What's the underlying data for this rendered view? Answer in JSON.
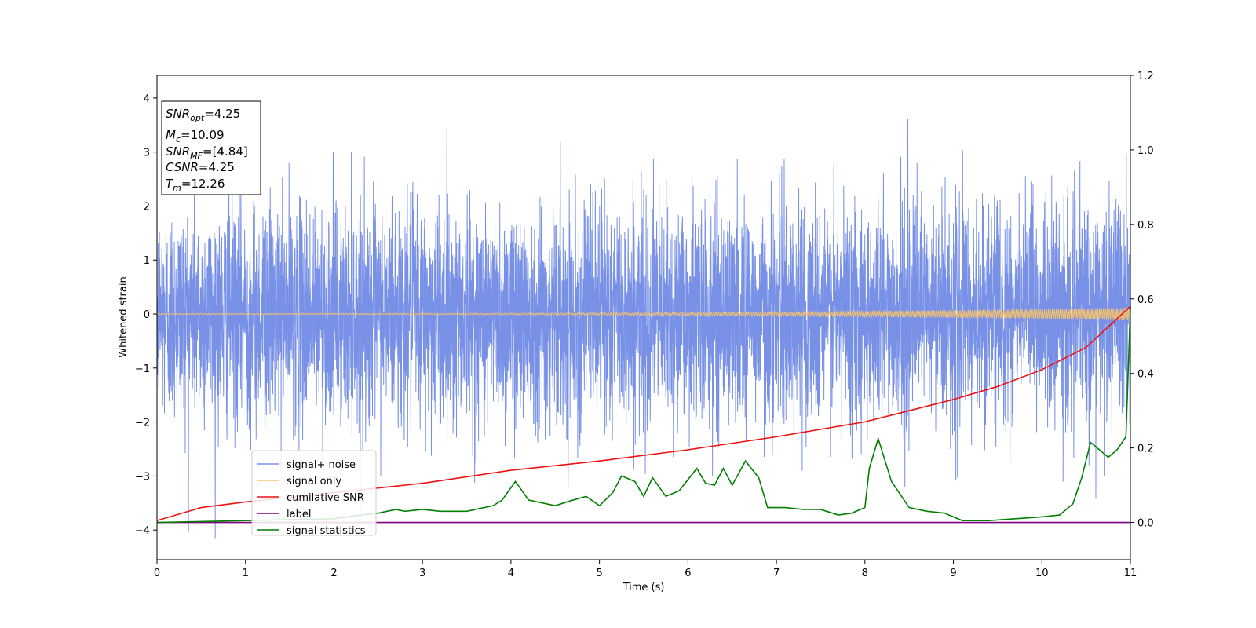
{
  "chart_data": {
    "type": "line",
    "xlabel": "Time (s)",
    "ylabel": "Whitened strain",
    "xlim": [
      0,
      11
    ],
    "ylim_left": [
      -4.55,
      4.42
    ],
    "ylim_right": [
      -0.1,
      1.2
    ],
    "x_ticks": [
      "0",
      "1",
      "2",
      "3",
      "4",
      "5",
      "6",
      "7",
      "8",
      "9",
      "10",
      "11"
    ],
    "y_ticks_left": [
      "4",
      "3",
      "2",
      "1",
      "0",
      "−1",
      "−2",
      "−3",
      "−4"
    ],
    "y_ticks_right": [
      "1.2",
      "1.0",
      "0.8",
      "0.6",
      "0.4",
      "0.2",
      "0.0"
    ],
    "legend_position": "lower-left",
    "info_box": {
      "snr_opt": {
        "base": "SNR",
        "sub": "opt",
        "rest": "=4.25"
      },
      "mc": {
        "base": "M",
        "sub": "c",
        "rest": "=10.09"
      },
      "snr_mf": {
        "base": "SNR",
        "sub": "MF",
        "rest": "=[4.84]"
      },
      "csnr": {
        "base": "CSNR",
        "rest": "=4.25"
      },
      "tm": {
        "base": "T",
        "sub": "m",
        "rest": "=12.26"
      }
    },
    "series": [
      {
        "name": "signal+ noise",
        "axis": "left",
        "color": "#7891e6",
        "noise_std": 1.0,
        "approx_range": [
          -4.15,
          4.02
        ]
      },
      {
        "name": "signal only",
        "axis": "left",
        "color": "#f5c26e",
        "amplitude_start": 0.01,
        "amplitude_end": 0.12
      },
      {
        "name": "cumilative SNR",
        "axis": "right",
        "color": "#ee1111",
        "x": [
          0,
          0.5,
          1,
          2,
          3,
          4,
          5,
          6,
          7,
          8,
          9,
          9.5,
          10,
          10.5,
          11
        ],
        "y": [
          0.005,
          0.04,
          0.055,
          0.08,
          0.105,
          0.14,
          0.165,
          0.195,
          0.23,
          0.27,
          0.33,
          0.365,
          0.41,
          0.47,
          0.58
        ]
      },
      {
        "name": "label",
        "axis": "right",
        "color": "#800080",
        "x": [
          0,
          11
        ],
        "y": [
          0.0,
          0.0
        ]
      },
      {
        "name": "signal statistics",
        "axis": "right",
        "color": "#007f00",
        "x": [
          0,
          1,
          2,
          2.3,
          2.5,
          2.7,
          2.8,
          3,
          3.2,
          3.5,
          3.8,
          3.9,
          4.05,
          4.2,
          4.5,
          4.7,
          4.85,
          5,
          5.15,
          5.25,
          5.4,
          5.5,
          5.6,
          5.75,
          5.9,
          6.1,
          6.2,
          6.3,
          6.4,
          6.5,
          6.65,
          6.8,
          6.9,
          7.1,
          7.3,
          7.5,
          7.7,
          7.85,
          8,
          8.05,
          8.15,
          8.3,
          8.5,
          8.7,
          8.9,
          9.1,
          9.4,
          9.7,
          10,
          10.2,
          10.35,
          10.45,
          10.55,
          10.65,
          10.75,
          10.85,
          10.95,
          11
        ],
        "y": [
          0.0,
          0.005,
          0.01,
          0.02,
          0.025,
          0.035,
          0.03,
          0.035,
          0.03,
          0.03,
          0.045,
          0.06,
          0.11,
          0.06,
          0.045,
          0.06,
          0.07,
          0.045,
          0.08,
          0.125,
          0.11,
          0.07,
          0.12,
          0.07,
          0.085,
          0.145,
          0.105,
          0.1,
          0.145,
          0.1,
          0.165,
          0.12,
          0.04,
          0.04,
          0.035,
          0.035,
          0.02,
          0.025,
          0.04,
          0.145,
          0.225,
          0.11,
          0.04,
          0.03,
          0.025,
          0.005,
          0.005,
          0.01,
          0.015,
          0.02,
          0.05,
          0.12,
          0.215,
          0.195,
          0.175,
          0.195,
          0.23,
          0.58
        ]
      }
    ]
  }
}
